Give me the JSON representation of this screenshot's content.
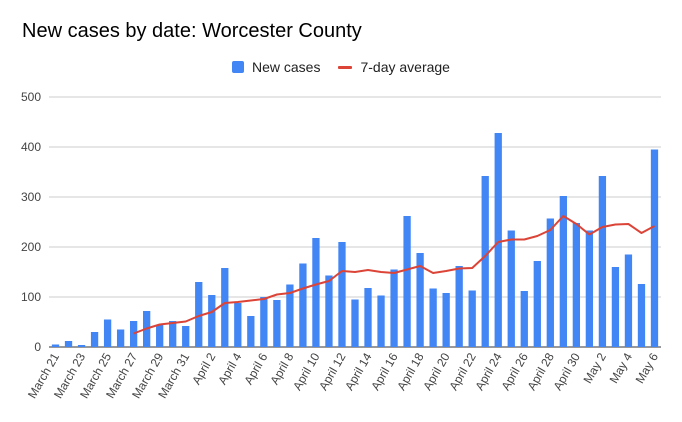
{
  "chart_data": {
    "type": "bar",
    "title": "New cases by date: Worcester County",
    "xlabel": "",
    "ylabel": "",
    "ylim": [
      0,
      500
    ],
    "yticks": [
      0,
      100,
      200,
      300,
      400,
      500
    ],
    "grid": true,
    "legend_position": "top-center",
    "categories": [
      "March 21",
      "March 22",
      "March 23",
      "March 24",
      "March 25",
      "March 26",
      "March 27",
      "March 28",
      "March 29",
      "March 30",
      "March 31",
      "April 1",
      "April 2",
      "April 3",
      "April 4",
      "April 5",
      "April 6",
      "April 7",
      "April 8",
      "April 9",
      "April 10",
      "April 11",
      "April 12",
      "April 13",
      "April 14",
      "April 15",
      "April 16",
      "April 17",
      "April 18",
      "April 19",
      "April 20",
      "April 21",
      "April 22",
      "April 23",
      "April 24",
      "April 25",
      "April 26",
      "April 27",
      "April 28",
      "April 29",
      "April 30",
      "May 1",
      "May 2",
      "May 3",
      "May 4",
      "May 5",
      "May 6"
    ],
    "tick_labels": [
      "March 21",
      "March 23",
      "March 25",
      "March 27",
      "March 29",
      "March 31",
      "April 2",
      "April 4",
      "April 6",
      "April 8",
      "April 10",
      "April 12",
      "April 14",
      "April 16",
      "April 18",
      "April 20",
      "April 22",
      "April 24",
      "April 26",
      "April 28",
      "April 30",
      "May 2",
      "May 4",
      "May 6"
    ],
    "series": [
      {
        "name": "New cases",
        "kind": "bar",
        "color": "#4285f4",
        "values": [
          5,
          12,
          4,
          30,
          55,
          35,
          52,
          72,
          45,
          52,
          42,
          130,
          104,
          158,
          88,
          62,
          100,
          94,
          125,
          167,
          218,
          143,
          210,
          95,
          118,
          103,
          155,
          262,
          188,
          117,
          108,
          162,
          113,
          342,
          428,
          233,
          112,
          172,
          257,
          302,
          248,
          233,
          342,
          160,
          185,
          126,
          395
        ]
      },
      {
        "name": "7-day average",
        "kind": "line",
        "color": "#db4437",
        "values": [
          null,
          null,
          null,
          null,
          null,
          null,
          27,
          37,
          45,
          48,
          51,
          62,
          70,
          88,
          90,
          93,
          96,
          105,
          108,
          117,
          125,
          132,
          152,
          150,
          154,
          150,
          148,
          155,
          162,
          148,
          152,
          157,
          158,
          182,
          210,
          215,
          215,
          222,
          234,
          262,
          246,
          225,
          240,
          245,
          246,
          228,
          242
        ]
      }
    ]
  }
}
